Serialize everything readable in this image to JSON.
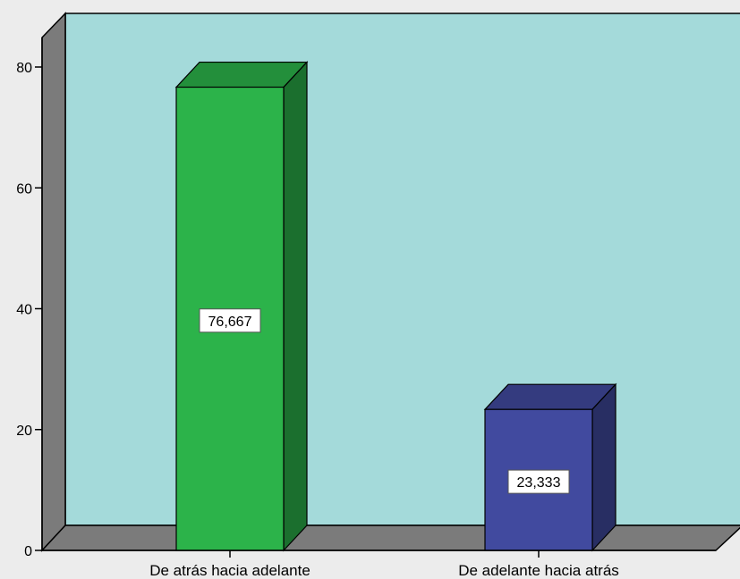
{
  "chart_data": {
    "type": "bar",
    "style": "3d",
    "categories": [
      "De atrás hacia adelante",
      "De adelante hacia atrás"
    ],
    "values": [
      76.667,
      23.333
    ],
    "value_labels": [
      "76,667",
      "23,333"
    ],
    "bar_colors": [
      "#2cb34a",
      "#414a9f"
    ],
    "ylim": [
      0,
      80
    ],
    "yticks": [
      "0",
      "20",
      "40",
      "60",
      "80"
    ],
    "title": "",
    "xlabel": "",
    "ylabel": "",
    "grid": false,
    "legend": "none",
    "colors": {
      "background": "#ececec",
      "plot_back_wall": "#a4dada",
      "side_wall": "#7b7b7b",
      "floor": "#7b7b7b"
    }
  }
}
